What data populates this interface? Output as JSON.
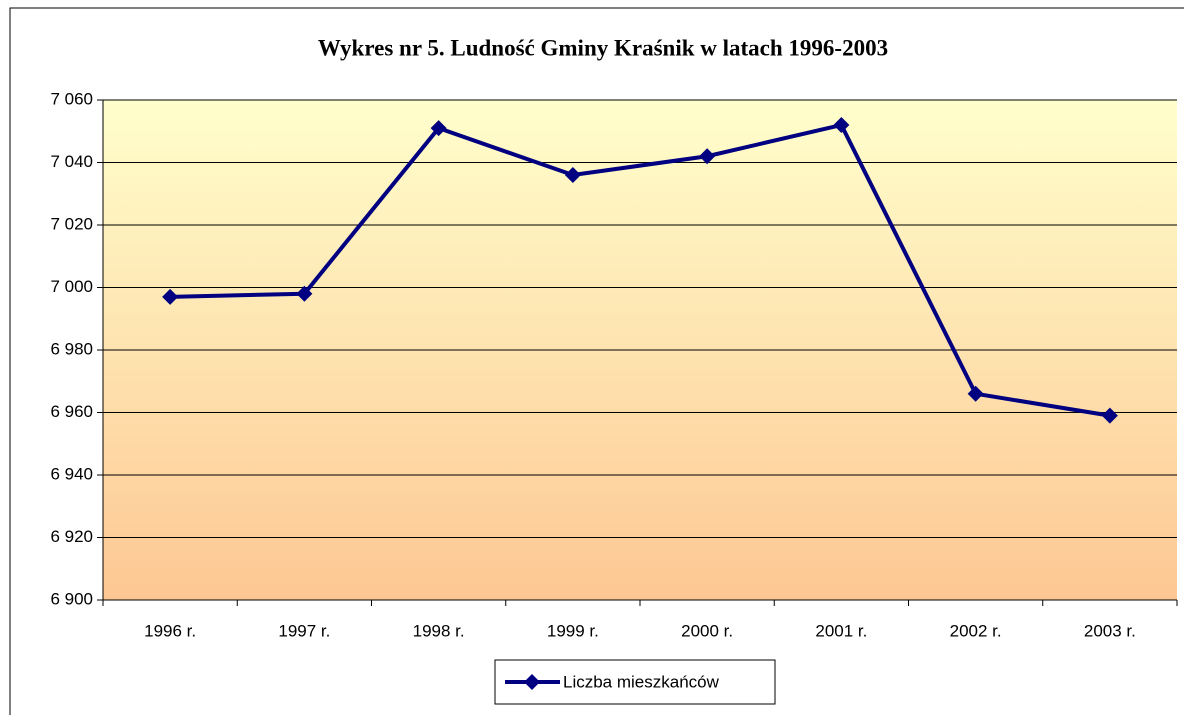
{
  "chart_data": {
    "type": "line",
    "title": "Wykres nr 5. Ludność Gminy Kraśnik w latach 1996-2003",
    "categories": [
      "1996 r.",
      "1997 r.",
      "1998 r.",
      "1999 r.",
      "2000 r.",
      "2001 r.",
      "2002 r.",
      "2003 r."
    ],
    "series": [
      {
        "name": "Liczba mieszkańców",
        "color": "#000080",
        "values": [
          6997,
          6998,
          7051,
          7036,
          7042,
          7052,
          6966,
          6959
        ]
      }
    ],
    "ylim": [
      6900,
      7060
    ],
    "yticks": [
      {
        "value": 6900,
        "label": "6 900"
      },
      {
        "value": 6920,
        "label": "6 920"
      },
      {
        "value": 6940,
        "label": "6 940"
      },
      {
        "value": 6960,
        "label": "6 960"
      },
      {
        "value": 6980,
        "label": "6 980"
      },
      {
        "value": 7000,
        "label": "7 000"
      },
      {
        "value": 7020,
        "label": "7 020"
      },
      {
        "value": 7040,
        "label": "7 040"
      },
      {
        "value": 7060,
        "label": "7 060"
      }
    ],
    "grid": true,
    "legend": "bottom"
  }
}
